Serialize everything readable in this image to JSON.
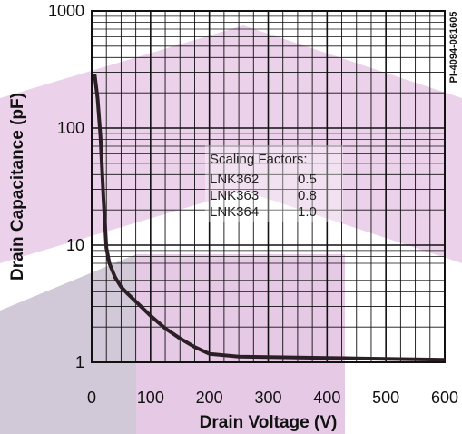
{
  "chart_data": {
    "type": "line",
    "figure_id": "PI-4094-081605",
    "xlabel": "Drain Voltage (V)",
    "ylabel": "Drain Capacitance (pF)",
    "xlim": [
      0,
      600
    ],
    "ylim": [
      1,
      1000
    ],
    "y_scale": "log",
    "grid": true,
    "x_ticks": [
      0,
      100,
      200,
      300,
      400,
      500,
      600
    ],
    "x_tick_labels": [
      "0",
      "100",
      "200",
      "300",
      "400",
      "500",
      "600"
    ],
    "y_ticks": [
      1,
      10,
      100,
      1000
    ],
    "y_tick_labels": [
      "1",
      "10",
      "100",
      "1000"
    ],
    "series": [
      {
        "x": [
          5,
          10,
          15,
          20,
          25,
          30,
          40,
          50,
          60,
          75,
          100,
          125,
          150,
          175,
          200,
          250,
          300,
          350,
          400,
          450,
          500,
          550,
          600
        ],
        "y": [
          290,
          180,
          85,
          25,
          9.5,
          7,
          5.3,
          4.4,
          3.9,
          3.3,
          2.5,
          1.95,
          1.6,
          1.35,
          1.18,
          1.12,
          1.11,
          1.1,
          1.09,
          1.08,
          1.07,
          1.06,
          1.05
        ],
        "color": "#2b1e24"
      }
    ],
    "annotation": {
      "title": "Scaling Factors:",
      "rows": [
        {
          "part": "LNK362",
          "factor": "0.5"
        },
        {
          "part": "LNK363",
          "factor": "0.8"
        },
        {
          "part": "LNK364",
          "factor": "1.0"
        }
      ]
    }
  }
}
